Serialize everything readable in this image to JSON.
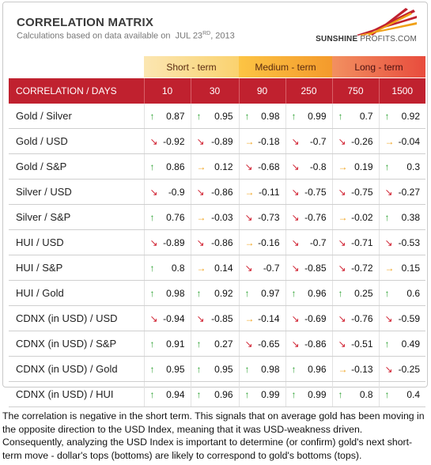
{
  "header": {
    "title": "CORRELATION MATRIX",
    "subtitle_prefix": "Calculations based on data available on",
    "date_month_day": "JUL 23",
    "date_suffix": "RD",
    "date_year": ", 2013"
  },
  "logo": {
    "brand_bold": "SUNSHINE",
    "brand_light": "PROFITS.COM"
  },
  "terms": [
    "Short - term",
    "Medium - term",
    "Long - term"
  ],
  "table": {
    "corner": "CORRELATION / DAYS",
    "days": [
      "10",
      "30",
      "90",
      "250",
      "750",
      "1500"
    ],
    "rows": [
      {
        "label": "Gold / Silver",
        "cells": [
          {
            "dir": "up",
            "v": "0.87"
          },
          {
            "dir": "up",
            "v": "0.95"
          },
          {
            "dir": "up",
            "v": "0.98"
          },
          {
            "dir": "up",
            "v": "0.99"
          },
          {
            "dir": "up",
            "v": "0.7"
          },
          {
            "dir": "up",
            "v": "0.92"
          }
        ]
      },
      {
        "label": "Gold / USD",
        "cells": [
          {
            "dir": "down",
            "v": "-0.92"
          },
          {
            "dir": "down",
            "v": "-0.89"
          },
          {
            "dir": "flat",
            "v": "-0.18"
          },
          {
            "dir": "down",
            "v": "-0.7"
          },
          {
            "dir": "down",
            "v": "-0.26"
          },
          {
            "dir": "flat",
            "v": "-0.04"
          }
        ]
      },
      {
        "label": "Gold / S&P",
        "cells": [
          {
            "dir": "up",
            "v": "0.86"
          },
          {
            "dir": "flat",
            "v": "0.12"
          },
          {
            "dir": "down",
            "v": "-0.68"
          },
          {
            "dir": "down",
            "v": "-0.8"
          },
          {
            "dir": "flat",
            "v": "0.19"
          },
          {
            "dir": "up",
            "v": "0.3"
          }
        ]
      },
      {
        "label": "Silver / USD",
        "cells": [
          {
            "dir": "down",
            "v": "-0.9"
          },
          {
            "dir": "down",
            "v": "-0.86"
          },
          {
            "dir": "flat",
            "v": "-0.11"
          },
          {
            "dir": "down",
            "v": "-0.75"
          },
          {
            "dir": "down",
            "v": "-0.75"
          },
          {
            "dir": "down",
            "v": "-0.27"
          }
        ]
      },
      {
        "label": "Silver / S&P",
        "cells": [
          {
            "dir": "up",
            "v": "0.76"
          },
          {
            "dir": "flat",
            "v": "-0.03"
          },
          {
            "dir": "down",
            "v": "-0.73"
          },
          {
            "dir": "down",
            "v": "-0.76"
          },
          {
            "dir": "flat",
            "v": "-0.02"
          },
          {
            "dir": "up",
            "v": "0.38"
          }
        ]
      },
      {
        "label": "HUI / USD",
        "cells": [
          {
            "dir": "down",
            "v": "-0.89"
          },
          {
            "dir": "down",
            "v": "-0.86"
          },
          {
            "dir": "flat",
            "v": "-0.16"
          },
          {
            "dir": "down",
            "v": "-0.7"
          },
          {
            "dir": "down",
            "v": "-0.71"
          },
          {
            "dir": "down",
            "v": "-0.53"
          }
        ]
      },
      {
        "label": "HUI / S&P",
        "cells": [
          {
            "dir": "up",
            "v": "0.8"
          },
          {
            "dir": "flat",
            "v": "0.14"
          },
          {
            "dir": "down",
            "v": "-0.7"
          },
          {
            "dir": "down",
            "v": "-0.85"
          },
          {
            "dir": "down",
            "v": "-0.72"
          },
          {
            "dir": "flat",
            "v": "0.15"
          }
        ]
      },
      {
        "label": "HUI / Gold",
        "cells": [
          {
            "dir": "up",
            "v": "0.98"
          },
          {
            "dir": "up",
            "v": "0.92"
          },
          {
            "dir": "up",
            "v": "0.97"
          },
          {
            "dir": "up",
            "v": "0.96"
          },
          {
            "dir": "up",
            "v": "0.25"
          },
          {
            "dir": "up",
            "v": "0.6"
          }
        ]
      },
      {
        "label": "CDNX (in USD) / USD",
        "cells": [
          {
            "dir": "down",
            "v": "-0.94"
          },
          {
            "dir": "down",
            "v": "-0.85"
          },
          {
            "dir": "flat",
            "v": "-0.14"
          },
          {
            "dir": "down",
            "v": "-0.69"
          },
          {
            "dir": "down",
            "v": "-0.76"
          },
          {
            "dir": "down",
            "v": "-0.59"
          }
        ]
      },
      {
        "label": "CDNX (in USD) / S&P",
        "cells": [
          {
            "dir": "up",
            "v": "0.91"
          },
          {
            "dir": "up",
            "v": "0.27"
          },
          {
            "dir": "down",
            "v": "-0.65"
          },
          {
            "dir": "down",
            "v": "-0.86"
          },
          {
            "dir": "down",
            "v": "-0.51"
          },
          {
            "dir": "up",
            "v": "0.49"
          }
        ]
      },
      {
        "label": "CDNX (in USD) / Gold",
        "cells": [
          {
            "dir": "up",
            "v": "0.95"
          },
          {
            "dir": "up",
            "v": "0.95"
          },
          {
            "dir": "up",
            "v": "0.98"
          },
          {
            "dir": "up",
            "v": "0.96"
          },
          {
            "dir": "flat",
            "v": "-0.13"
          },
          {
            "dir": "down",
            "v": "-0.25"
          }
        ]
      },
      {
        "label": "CDNX (in USD) / HUI",
        "cells": [
          {
            "dir": "up",
            "v": "0.94"
          },
          {
            "dir": "up",
            "v": "0.96"
          },
          {
            "dir": "up",
            "v": "0.99"
          },
          {
            "dir": "up",
            "v": "0.99"
          },
          {
            "dir": "up",
            "v": "0.8"
          },
          {
            "dir": "up",
            "v": "0.4"
          }
        ]
      }
    ]
  },
  "arrow_colors": {
    "up": "#2fa334",
    "down": "#d02030",
    "flat": "#f0a015"
  },
  "note": "The correlation is negative in the short term. This signals that on average gold has been moving in the opposite direction to the USD Index, meaning that it was USD-weakness driven. Consequently, analyzing the USD Index is important to determine (or confirm) gold's next short-term move - dollar's tops (bottoms) are likely to correspond to gold's bottoms (tops)."
}
